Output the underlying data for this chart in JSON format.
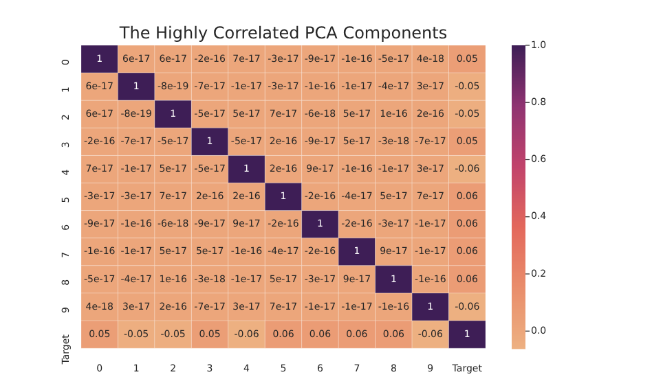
{
  "chart_data": {
    "type": "heatmap",
    "title": "The Highly Correlated PCA Components",
    "categories": [
      "0",
      "1",
      "2",
      "3",
      "4",
      "5",
      "6",
      "7",
      "8",
      "9",
      "Target"
    ],
    "y_categories": [
      "0",
      "1",
      "2",
      "3",
      "4",
      "5",
      "6",
      "7",
      "8",
      "9",
      "Target"
    ],
    "cells": [
      [
        1,
        6e-17,
        6e-17,
        -2e-16,
        7e-17,
        -3e-17,
        -9e-17,
        -1e-16,
        -5e-17,
        4e-18,
        0.05
      ],
      [
        6e-17,
        1,
        -8e-19,
        -7e-17,
        -1e-17,
        -3e-17,
        -1e-16,
        -1e-17,
        -4e-17,
        3e-17,
        -0.05
      ],
      [
        6e-17,
        -8e-19,
        1,
        -5e-17,
        5e-17,
        7e-17,
        -6e-18,
        5e-17,
        1e-16,
        2e-16,
        -0.05
      ],
      [
        -2e-16,
        -7e-17,
        -5e-17,
        1,
        -5e-17,
        2e-16,
        -9e-17,
        5e-17,
        -3e-18,
        -7e-17,
        0.05
      ],
      [
        7e-17,
        -1e-17,
        5e-17,
        -5e-17,
        1,
        2e-16,
        9e-17,
        -1e-16,
        -1e-17,
        3e-17,
        -0.06
      ],
      [
        -3e-17,
        -3e-17,
        7e-17,
        2e-16,
        2e-16,
        1,
        -2e-16,
        -4e-17,
        5e-17,
        7e-17,
        0.06
      ],
      [
        -9e-17,
        -1e-16,
        -6e-18,
        -9e-17,
        9e-17,
        -2e-16,
        1,
        -2e-16,
        -3e-17,
        -1e-17,
        0.06
      ],
      [
        -1e-16,
        -1e-17,
        5e-17,
        5e-17,
        -1e-16,
        -4e-17,
        -2e-16,
        1,
        9e-17,
        -1e-17,
        0.06
      ],
      [
        -5e-17,
        -4e-17,
        1e-16,
        -3e-18,
        -1e-17,
        5e-17,
        -3e-17,
        9e-17,
        1,
        -1e-16,
        0.06
      ],
      [
        4e-18,
        3e-17,
        2e-16,
        -7e-17,
        3e-17,
        7e-17,
        -1e-17,
        -1e-17,
        -1e-16,
        1,
        -0.06
      ],
      [
        0.05,
        -0.05,
        -0.05,
        0.05,
        -0.06,
        0.06,
        0.06,
        0.06,
        0.06,
        -0.06,
        1
      ]
    ],
    "data_labels": true,
    "clim": [
      -0.06,
      1
    ],
    "cticks": [
      {
        "value": 0,
        "label": "0.0"
      },
      {
        "value": 0.2,
        "label": "0.2"
      },
      {
        "value": 0.4,
        "label": "0.4"
      },
      {
        "value": 0.6,
        "label": "0.6"
      },
      {
        "value": 0.8,
        "label": "0.8"
      },
      {
        "value": 1,
        "label": "1.0"
      }
    ]
  }
}
